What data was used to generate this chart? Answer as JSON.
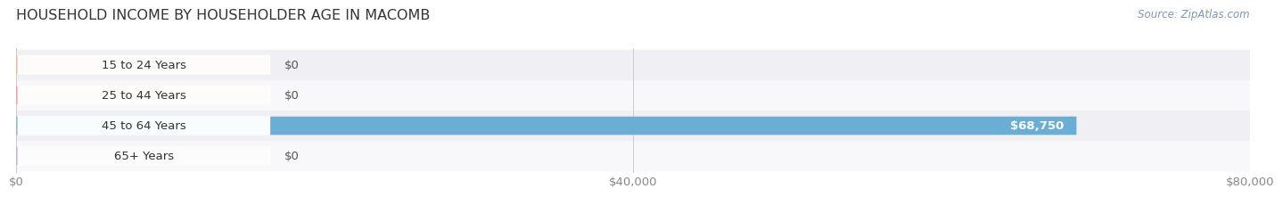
{
  "title": "HOUSEHOLD INCOME BY HOUSEHOLDER AGE IN MACOMB",
  "source": "Source: ZipAtlas.com",
  "categories": [
    "15 to 24 Years",
    "25 to 44 Years",
    "45 to 64 Years",
    "65+ Years"
  ],
  "values": [
    0,
    0,
    68750,
    0
  ],
  "bar_colors": [
    "#f0b482",
    "#f09090",
    "#6aaed6",
    "#c4aad4"
  ],
  "row_bg_colors": [
    "#f0f0f4",
    "#f8f8fa",
    "#f0f0f4",
    "#f8f8fa"
  ],
  "xlim_max": 80000,
  "xticks": [
    0,
    40000,
    80000
  ],
  "xtick_labels": [
    "$0",
    "$40,000",
    "$80,000"
  ],
  "value_labels": [
    "$0",
    "$0",
    "$68,750",
    "$0"
  ],
  "background_color": "#ffffff",
  "title_fontsize": 11.5,
  "label_fontsize": 9.5,
  "tick_fontsize": 9.5,
  "source_fontsize": 8.5
}
